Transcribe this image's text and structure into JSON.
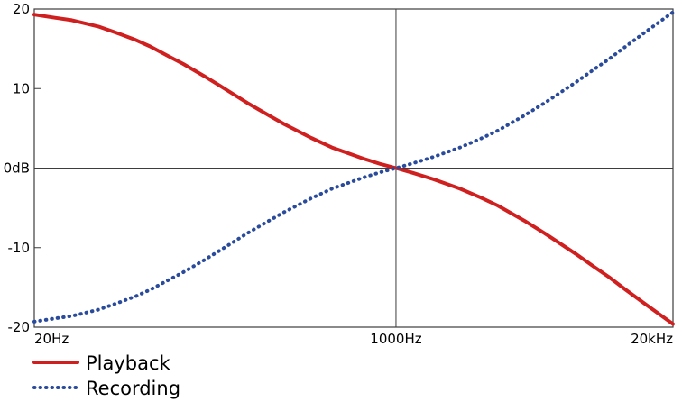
{
  "chart_data": {
    "type": "line",
    "title": "",
    "xlabel": "",
    "ylabel": "",
    "x_scale": "log",
    "xlim": [
      20,
      20000
    ],
    "ylim": [
      -20,
      20
    ],
    "legend_position": "bottom-left",
    "grid": "center-cross-only",
    "x": [
      20,
      25,
      30,
      40,
      50,
      60,
      70,
      85,
      100,
      125,
      150,
      200,
      250,
      300,
      400,
      500,
      700,
      850,
      1000,
      1200,
      1500,
      2000,
      2500,
      3000,
      4000,
      5000,
      7000,
      8500,
      10000,
      12000,
      15000,
      20000
    ],
    "series": [
      {
        "name": "Playback",
        "color": "#d01f1f",
        "style": "solid",
        "values": [
          19.3,
          18.9,
          18.6,
          17.8,
          16.9,
          16.1,
          15.3,
          14.1,
          13.1,
          11.6,
          10.3,
          8.2,
          6.7,
          5.5,
          3.8,
          2.6,
          1.2,
          0.5,
          0,
          -0.6,
          -1.4,
          -2.6,
          -3.7,
          -4.7,
          -6.6,
          -8.2,
          -10.8,
          -12.4,
          -13.7,
          -15.3,
          -17.2,
          -19.6
        ]
      },
      {
        "name": "Recording",
        "color": "#2a4b9c",
        "style": "dotted",
        "values": [
          -19.3,
          -18.9,
          -18.6,
          -17.8,
          -16.9,
          -16.1,
          -15.3,
          -14.1,
          -13.1,
          -11.6,
          -10.3,
          -8.2,
          -6.7,
          -5.5,
          -3.8,
          -2.6,
          -1.2,
          -0.5,
          0,
          0.6,
          1.4,
          2.6,
          3.7,
          4.7,
          6.6,
          8.2,
          10.8,
          12.4,
          13.7,
          15.3,
          17.2,
          19.6
        ]
      }
    ],
    "xticks": [
      {
        "value": 20,
        "label": "20Hz"
      },
      {
        "value": 1000,
        "label": "1000Hz"
      },
      {
        "value": 20000,
        "label": "20kHz"
      }
    ],
    "yticks": [
      {
        "value": 20,
        "label": "20"
      },
      {
        "value": 10,
        "label": "10"
      },
      {
        "value": 0,
        "label": "0dB"
      },
      {
        "value": -10,
        "label": "-10"
      },
      {
        "value": -20,
        "label": "-20"
      }
    ],
    "gridlines": {
      "x_at": [
        1000
      ],
      "y_at": [
        0
      ]
    }
  },
  "legend": {
    "items": [
      {
        "label": "Playback",
        "color": "#d01f1f",
        "style": "solid"
      },
      {
        "label": "Recording",
        "color": "#2a4b9c",
        "style": "dotted"
      }
    ]
  }
}
